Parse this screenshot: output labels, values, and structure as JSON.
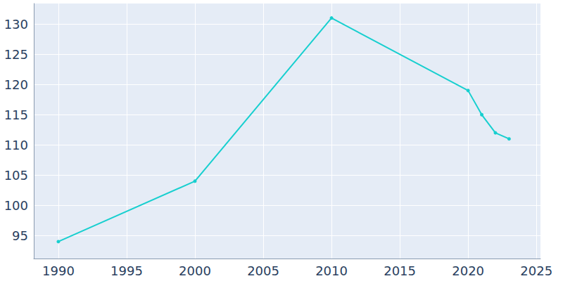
{
  "chart_data": {
    "type": "line",
    "x": [
      1990,
      2000,
      2010,
      2020,
      2021,
      2022,
      2023
    ],
    "values": [
      94,
      104,
      131,
      119,
      115,
      112,
      111
    ],
    "color": "#17cfcf",
    "marker": "circle",
    "xlim": [
      1988.2,
      2025.3
    ],
    "xticks": [
      1990,
      1995,
      2000,
      2005,
      2010,
      2015,
      2020,
      2025
    ],
    "ylim": [
      91.2,
      133.4
    ],
    "yticks": [
      95,
      100,
      105,
      110,
      115,
      120,
      125,
      130
    ],
    "grid": true
  }
}
